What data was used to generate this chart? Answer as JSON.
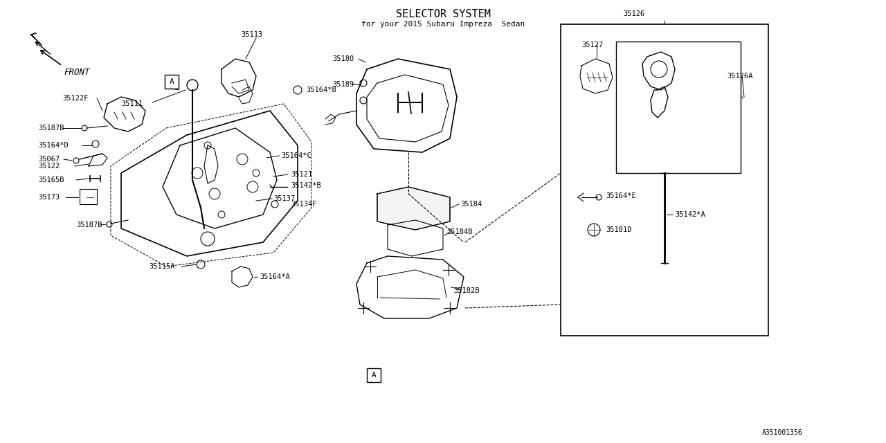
{
  "title": "SELECTOR SYSTEM",
  "subtitle": "for your 2015 Subaru Impreza  Sedan",
  "bg_color": "#ffffff",
  "line_color": "#000000",
  "part_numbers": [
    "35113",
    "35111",
    "35122F",
    "35067",
    "35164*B",
    "35142*B",
    "35134F",
    "35187B",
    "35164*D",
    "35122",
    "35165B",
    "35173",
    "35187B",
    "35115A",
    "35164*A",
    "35121",
    "35137",
    "35164*C",
    "35180",
    "35189",
    "35184",
    "35184B",
    "35182B",
    "35126",
    "35127",
    "35126A",
    "35164*E",
    "35181D",
    "35142*A"
  ],
  "diagram_ref": "A351001356",
  "front_arrow": true
}
